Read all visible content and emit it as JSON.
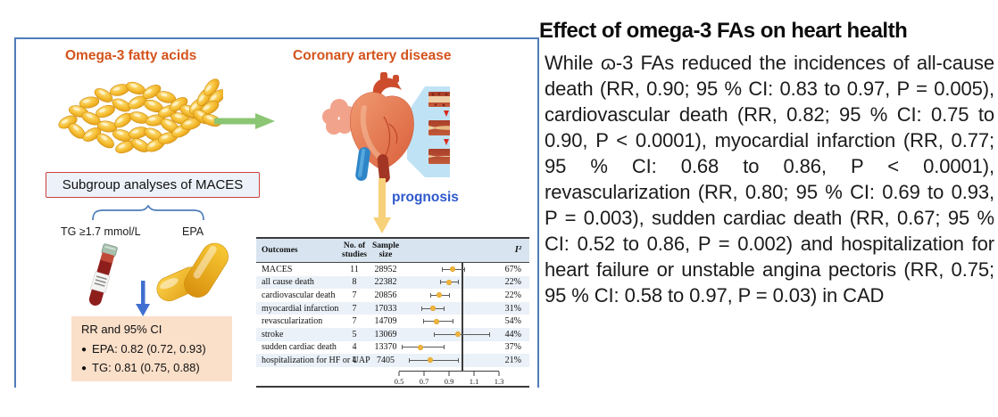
{
  "figure": {
    "omega_label": "Omega-3 fatty acids",
    "cad_label": "Coronary artery disease",
    "subgroup_box_label": "Subgroup analyses of MACES",
    "tg_label": "TG ≥1.7 mmol/L",
    "epa_label": "EPA",
    "prognosis_label": "prognosis",
    "result_box": {
      "title": "RR and 95% CI",
      "items": [
        "EPA: 0.82 (0.72, 0.93)",
        "TG: 0.81 (0.75, 0.88)"
      ]
    },
    "icons": [
      "fish-oil-capsules-illustration",
      "green-right-arrow-icon",
      "heart-illustration",
      "artery-progression-callout",
      "yellow-down-arrow-icon",
      "curly-brace",
      "blood-tube-icon",
      "epa-capsules-icon",
      "blue-down-arrow-icon"
    ],
    "colors": {
      "heading_orange": "#d4531c",
      "box_border_blue": "#4f7dbb",
      "prognosis_blue": "#2e59cc",
      "result_box_bg": "#fadfc9",
      "forest_dot": "#f0b43c",
      "table_header_bg": "#d8e5f0",
      "table_alt_row_bg": "#eaf1f8"
    }
  },
  "chart_data": {
    "type": "table",
    "subtype": "forest-plot",
    "headers": {
      "outcomes": "Outcomes",
      "studies": "No. of\nstudies",
      "sample": "Sample\nsize",
      "i2": "I²"
    },
    "rows": [
      {
        "outcome": "MACES",
        "studies": 11,
        "sample": 28952,
        "rr": 0.93,
        "ci": [
          0.84,
          1.02
        ],
        "i2": "67%"
      },
      {
        "outcome": "all cause death",
        "studies": 8,
        "sample": 22382,
        "rr": 0.9,
        "ci": [
          0.83,
          0.97
        ],
        "i2": "22%"
      },
      {
        "outcome": "cardiovascular death",
        "studies": 7,
        "sample": 20856,
        "rr": 0.82,
        "ci": [
          0.75,
          0.9
        ],
        "i2": "22%"
      },
      {
        "outcome": "myocardial infarction",
        "studies": 7,
        "sample": 17033,
        "rr": 0.77,
        "ci": [
          0.68,
          0.86
        ],
        "i2": "31%"
      },
      {
        "outcome": "revascularization",
        "studies": 7,
        "sample": 14709,
        "rr": 0.8,
        "ci": [
          0.69,
          0.93
        ],
        "i2": "54%"
      },
      {
        "outcome": "stroke",
        "studies": 5,
        "sample": 13069,
        "rr": 0.97,
        "ci": [
          0.78,
          1.22
        ],
        "i2": "44%"
      },
      {
        "outcome": "sudden cardiac death",
        "studies": 4,
        "sample": 13370,
        "rr": 0.67,
        "ci": [
          0.52,
          0.86
        ],
        "i2": "37%"
      },
      {
        "outcome": "hospitalization for HF or UAP",
        "studies": 4,
        "sample": 7405,
        "rr": 0.75,
        "ci": [
          0.58,
          0.97
        ],
        "i2": "21%"
      }
    ],
    "axis": {
      "min": 0.5,
      "max": 1.3,
      "ticks": [
        0.5,
        0.7,
        0.9,
        1.1,
        1.3
      ],
      "ref_line": 1.0
    },
    "legend_position": "none",
    "grid": false
  },
  "summary": {
    "title": "Effect of omega-3 FAs on heart health",
    "body": "While ɷ-3 FAs reduced the incidences of all-cause death (RR, 0.90; 95 % CI: 0.83 to 0.97, P = 0.005), cardiovascular death (RR, 0.82; 95 % CI: 0.75 to 0.90, P < 0.0001), myocardial infarction (RR, 0.77; 95 % CI: 0.68 to 0.86, P < 0.0001), revascularization (RR, 0.80; 95 % CI: 0.69 to 0.93, P = 0.003), sudden cardiac death (RR, 0.67; 95 % CI: 0.52 to 0.86, P = 0.002) and hospitalization for heart failure or unstable angina pectoris (RR, 0.75; 95 % CI: 0.58 to 0.97, P = 0.03) in CAD"
  }
}
